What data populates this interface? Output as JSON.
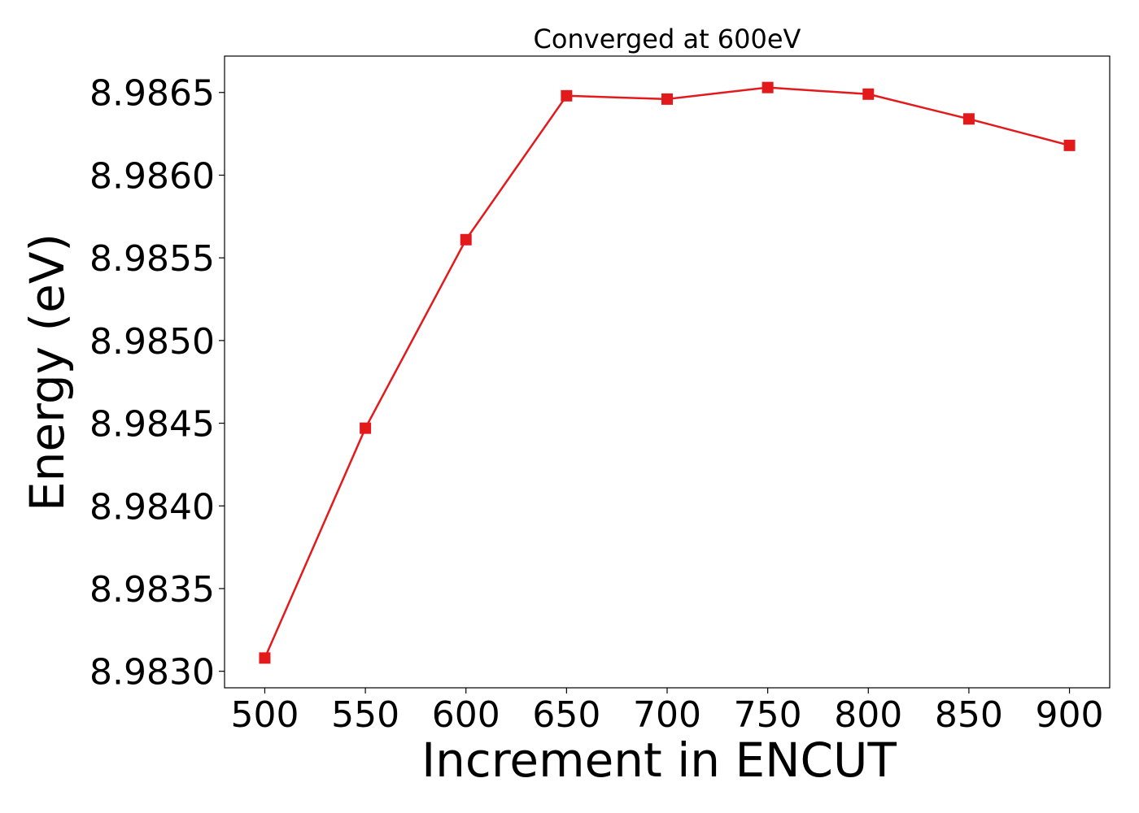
{
  "chart_data": {
    "type": "line",
    "title": "Converged at 600eV",
    "xlabel": "Increment in ENCUT",
    "ylabel": "Energy (eV)",
    "x": [
      500,
      550,
      600,
      650,
      700,
      750,
      800,
      850,
      900
    ],
    "series": [
      {
        "values": [
          8.98308,
          8.98447,
          8.98561,
          8.98648,
          8.98646,
          8.98653,
          8.98649,
          8.98634,
          8.98618
        ],
        "color": "#e31a1c",
        "marker": "square"
      }
    ],
    "xlim": [
      480,
      920
    ],
    "ylim": [
      8.9829,
      8.98672
    ],
    "xticks": [
      500,
      550,
      600,
      650,
      700,
      750,
      800,
      850,
      900
    ],
    "xtick_labels": [
      "500",
      "550",
      "600",
      "650",
      "700",
      "750",
      "800",
      "850",
      "900"
    ],
    "yticks": [
      8.983,
      8.9835,
      8.984,
      8.9845,
      8.985,
      8.9855,
      8.986,
      8.9865
    ],
    "ytick_labels": [
      "8.9830",
      "8.9835",
      "8.9840",
      "8.9845",
      "8.9850",
      "8.9855",
      "8.9860",
      "8.9865"
    ],
    "grid": false,
    "legend": false
  }
}
